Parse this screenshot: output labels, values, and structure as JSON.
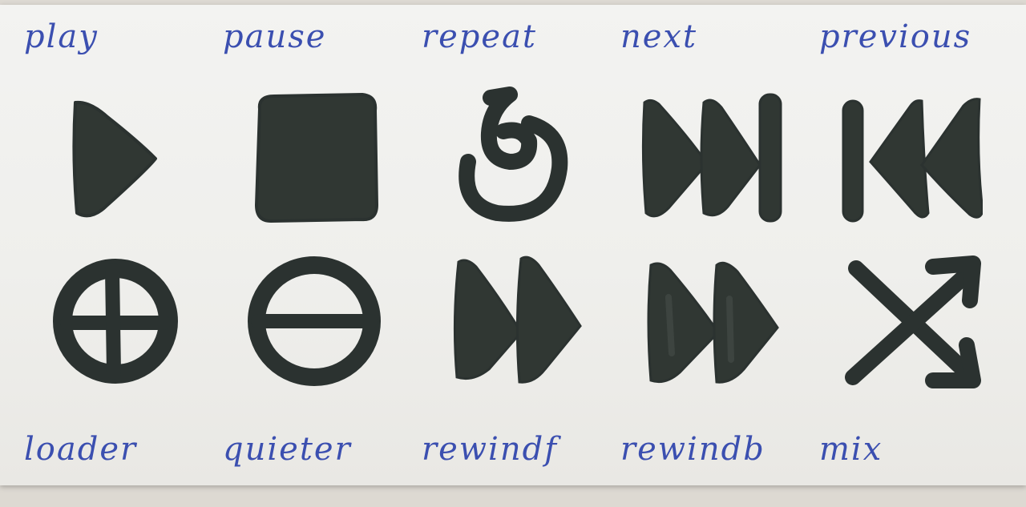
{
  "ink_color": "#303733",
  "label_color": "#3b4fb0",
  "paper_color": "#f0f0ed",
  "row1": [
    {
      "label": "play",
      "icon": "play-icon"
    },
    {
      "label": "pause",
      "icon": "stop-square-icon"
    },
    {
      "label": "repeat",
      "icon": "repeat-loop-icon"
    },
    {
      "label": "next",
      "icon": "next-track-icon"
    },
    {
      "label": "previous",
      "icon": "previous-track-icon"
    }
  ],
  "row2": [
    {
      "label": "loader",
      "icon": "circle-plus-icon"
    },
    {
      "label": "quieter",
      "icon": "circle-minus-icon"
    },
    {
      "label": "rewindf",
      "icon": "fast-forward-icon"
    },
    {
      "label": "rewindb",
      "icon": "fast-forward-outline-icon"
    },
    {
      "label": "mix",
      "icon": "shuffle-icon"
    }
  ]
}
